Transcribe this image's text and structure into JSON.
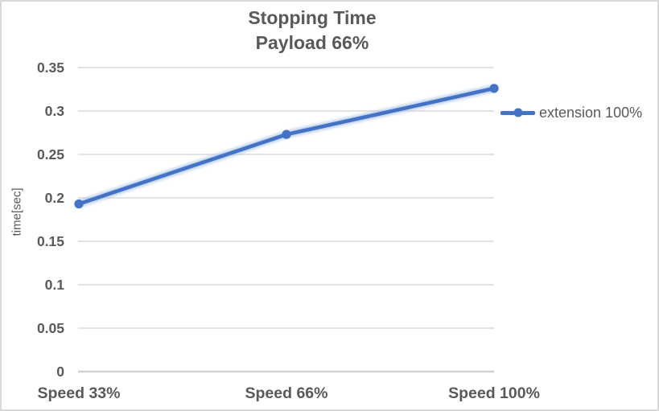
{
  "chart_data": {
    "type": "line",
    "title": "Stopping Time",
    "subtitle": "Payload 66%",
    "categories": [
      "Speed 33%",
      "Speed 66%",
      "Speed 100%"
    ],
    "series": [
      {
        "name": "extension 100%",
        "values": [
          0.193,
          0.273,
          0.326
        ]
      }
    ],
    "xlabel": "",
    "ylabel": "time[sec]",
    "ylim": [
      0,
      0.35
    ],
    "ytick_step": 0.05,
    "ytick_labels": [
      "0",
      "0.05",
      "0.1",
      "0.15",
      "0.2",
      "0.25",
      "0.3",
      "0.35"
    ],
    "grid": true,
    "legend_position": "right",
    "colors": {
      "series": "#4472C4",
      "series_halo": "#AEC6E8",
      "grid": "#D9D9D9",
      "axis": "#D2D2D2",
      "text": "#595959",
      "border": "#D9D9D9"
    }
  }
}
